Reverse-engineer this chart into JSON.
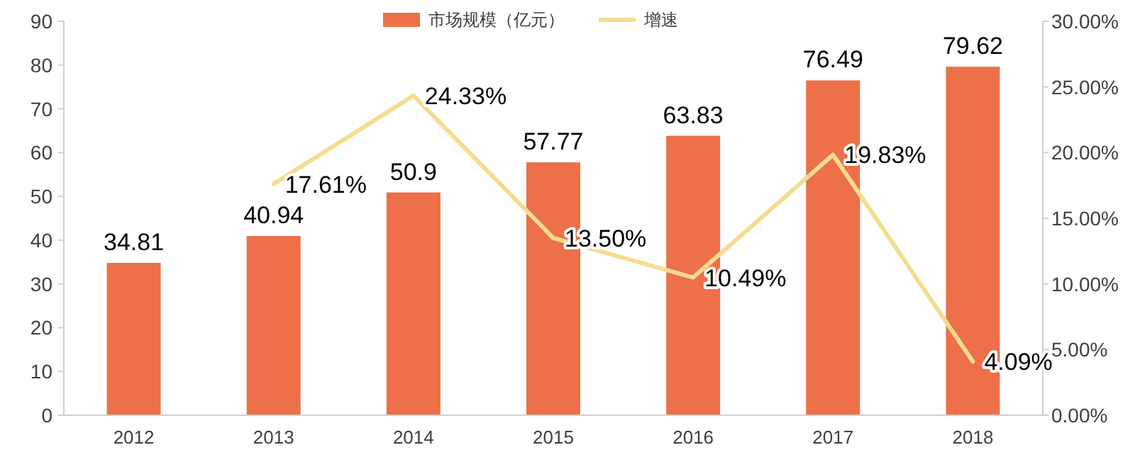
{
  "chart_data": {
    "type": "bar",
    "categories": [
      "2012",
      "2013",
      "2014",
      "2015",
      "2016",
      "2017",
      "2018"
    ],
    "series": [
      {
        "name": "市场规模（亿元）",
        "color": "#ed7049",
        "values": [
          34.81,
          40.94,
          50.9,
          57.77,
          63.83,
          76.49,
          79.62
        ],
        "value_labels": [
          "34.81",
          "40.94",
          "50.9",
          "57.77",
          "63.83",
          "76.49",
          "79.62"
        ]
      },
      {
        "name": "增速",
        "type": "line",
        "axis": "y2",
        "color": "#f5dc8f",
        "values": [
          null,
          17.61,
          24.33,
          13.5,
          10.49,
          19.83,
          4.09
        ],
        "value_labels": [
          null,
          "17.61%",
          "24.33%",
          "13.50%",
          "10.49%",
          "19.83%",
          "4.09%"
        ]
      }
    ],
    "ylim": [
      0,
      90
    ],
    "yticks": [
      0,
      10,
      20,
      30,
      40,
      50,
      60,
      70,
      80,
      90
    ],
    "y2lim": [
      0,
      30
    ],
    "y2ticks": [
      {
        "value": 0,
        "label": "0.00%"
      },
      {
        "value": 5,
        "label": "5.00%"
      },
      {
        "value": 10,
        "label": "10.00%"
      },
      {
        "value": 15,
        "label": "15.00%"
      },
      {
        "value": 20,
        "label": "20.00%"
      },
      {
        "value": 25,
        "label": "25.00%"
      },
      {
        "value": 30,
        "label": "30.00%"
      }
    ],
    "legend": "top",
    "marker": "none",
    "line_style": "solid"
  }
}
